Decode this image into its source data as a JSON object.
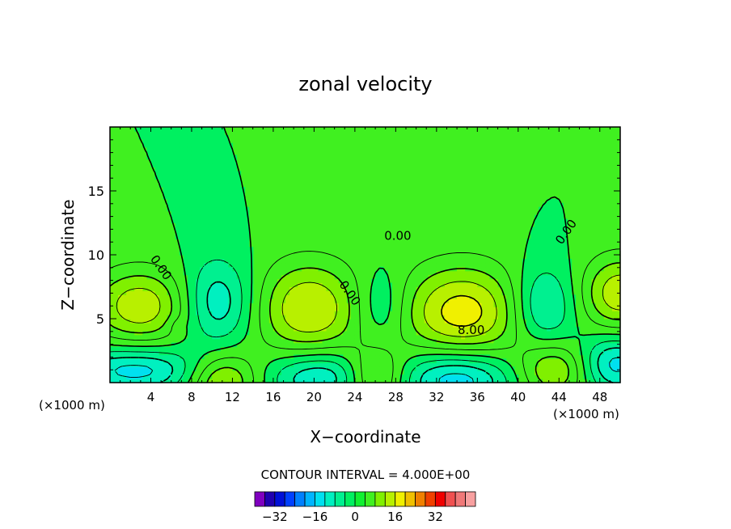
{
  "chart_data": {
    "type": "heatmap",
    "title": "zonal velocity",
    "xlabel": "X−coordinate",
    "ylabel": "Z−coordinate",
    "x_unit_left": "(×1000 m)",
    "x_unit_right": "(×1000 m)",
    "xlim": [
      0,
      50
    ],
    "ylim": [
      0,
      20
    ],
    "x_ticks": [
      4,
      8,
      12,
      16,
      20,
      24,
      28,
      32,
      36,
      40,
      44,
      48
    ],
    "y_ticks": [
      5,
      10,
      15
    ],
    "contour_interval_text": "CONTOUR INTERVAL = 4.000E+00",
    "contour_labels": [
      {
        "text": "0.00",
        "x": 5.0,
        "z": 9.0,
        "angle": 55
      },
      {
        "text": "0.00",
        "x": 23.5,
        "z": 7.0,
        "angle": 55
      },
      {
        "text": "0.00",
        "x": 28.2,
        "z": 11.5,
        "angle": 0
      },
      {
        "text": "0.00",
        "x": 44.7,
        "z": 11.8,
        "angle": -55
      },
      {
        "text": "8.00",
        "x": 35.4,
        "z": 4.1,
        "angle": 0
      }
    ],
    "features": [
      {
        "x": 3.0,
        "z": 6.0,
        "sx": 5.0,
        "sz": 3.0,
        "amp": 15
      },
      {
        "x": 2.5,
        "z": 1.0,
        "sx": 6.5,
        "sz": 1.8,
        "amp": -14
      },
      {
        "x": 10.5,
        "z": 6.3,
        "sx": 3.5,
        "sz": 3.4,
        "amp": -12
      },
      {
        "x": 11.0,
        "z": 0.2,
        "sx": 3.5,
        "sz": 2.2,
        "amp": 14
      },
      {
        "x": 19.5,
        "z": 5.8,
        "sx": 5.2,
        "sz": 3.8,
        "amp": 16
      },
      {
        "x": 20.5,
        "z": 0.5,
        "sx": 5.0,
        "sz": 2.0,
        "amp": -13
      },
      {
        "x": 26.0,
        "z": 0.5,
        "sx": 2.8,
        "sz": 2.2,
        "amp": 13
      },
      {
        "x": 26.5,
        "z": 6.0,
        "sx": 2.5,
        "sz": 3.0,
        "amp": -7
      },
      {
        "x": 34.5,
        "z": 5.5,
        "sx": 6.0,
        "sz": 3.8,
        "amp": 18
      },
      {
        "x": 34.0,
        "z": 0.4,
        "sx": 5.5,
        "sz": 2.2,
        "amp": -16
      },
      {
        "x": 42.5,
        "z": 6.0,
        "sx": 3.0,
        "sz": 3.2,
        "amp": -11
      },
      {
        "x": 43.5,
        "z": 1.0,
        "sx": 3.5,
        "sz": 2.2,
        "amp": 13
      },
      {
        "x": 50.0,
        "z": 7.0,
        "sx": 3.8,
        "sz": 3.0,
        "amp": 15
      },
      {
        "x": 49.5,
        "z": 1.5,
        "sx": 3.5,
        "sz": 2.2,
        "amp": -14
      },
      {
        "x": 29.8,
        "z": 14.5,
        "sx": 1.0,
        "sz": 0.4,
        "amp": 1.5
      },
      {
        "x": 6.5,
        "z": 4.5,
        "sx": 1.0,
        "sz": 0.6,
        "amp": -2
      }
    ],
    "legend": {
      "placement": "bottom-center",
      "colors": [
        "#7f00bf",
        "#2000b0",
        "#0010d8",
        "#0040ff",
        "#0080ff",
        "#00b4ff",
        "#00e0f0",
        "#00f0c0",
        "#00f090",
        "#00f060",
        "#10f030",
        "#40f020",
        "#80f000",
        "#b8f000",
        "#f0f000",
        "#f0c000",
        "#f08000",
        "#f04000",
        "#f00000",
        "#f05050",
        "#f07878",
        "#f8a0a0"
      ],
      "min": -40,
      "step": 4,
      "tick_values": [
        -32,
        -16,
        0,
        16,
        32
      ],
      "tick_labels": [
        "−32",
        "−16",
        "0",
        "16",
        "32"
      ]
    }
  }
}
